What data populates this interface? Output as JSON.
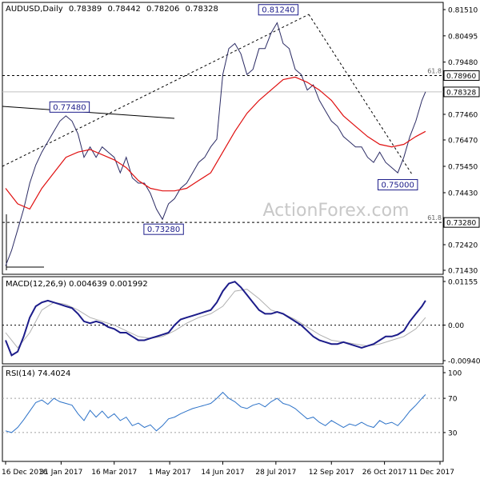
{
  "chart_data": {
    "type": "line",
    "title": "AUDUSD,Daily",
    "ohlc": {
      "open": "0.78389",
      "high": "0.78442",
      "low": "0.78206",
      "close": "0.78328"
    },
    "watermark": "ActionForex.com",
    "x_ticks": [
      "16 Dec 2016",
      "31 Jan 2017",
      "16 Mar 2017",
      "1 May 2017",
      "14 Jun 2017",
      "28 Jul 2017",
      "12 Sep 2017",
      "26 Oct 2017",
      "11 Dec 2017"
    ],
    "price_panel": {
      "ylim": [
        0.7143,
        0.8151
      ],
      "y_ticks": [
        "0.81510",
        "0.80495",
        "0.79480",
        "0.78328",
        "0.77460",
        "0.76470",
        "0.75450",
        "0.74430",
        "0.73280",
        "0.72420",
        "0.71430"
      ],
      "y_tick_values": [
        0.8151,
        0.80495,
        0.7948,
        0.78328,
        0.7746,
        0.7647,
        0.7545,
        0.7443,
        0.7328,
        0.7242,
        0.7143
      ],
      "current_price": "0.78328",
      "highlighted_levels": [
        {
          "label": "0.78960",
          "value": 0.7896,
          "fib": "61.8"
        },
        {
          "label": "0.73280",
          "value": 0.7328,
          "fib": "61.8"
        }
      ],
      "annotations": [
        {
          "label": "0.81240",
          "value": 0.8124,
          "day": 226
        },
        {
          "label": "0.77480",
          "value": 0.7748,
          "day": 53
        },
        {
          "label": "0.73280",
          "value": 0.7328,
          "day": 131
        },
        {
          "label": "0.75000",
          "value": 0.75,
          "day": 325
        }
      ],
      "close_series": [
        [
          0,
          0.716
        ],
        [
          5,
          0.722
        ],
        [
          10,
          0.73
        ],
        [
          15,
          0.738
        ],
        [
          20,
          0.748
        ],
        [
          25,
          0.755
        ],
        [
          30,
          0.76
        ],
        [
          35,
          0.764
        ],
        [
          40,
          0.768
        ],
        [
          45,
          0.772
        ],
        [
          50,
          0.774
        ],
        [
          55,
          0.772
        ],
        [
          60,
          0.767
        ],
        [
          65,
          0.758
        ],
        [
          70,
          0.762
        ],
        [
          75,
          0.758
        ],
        [
          80,
          0.762
        ],
        [
          85,
          0.76
        ],
        [
          90,
          0.758
        ],
        [
          95,
          0.752
        ],
        [
          100,
          0.758
        ],
        [
          105,
          0.75
        ],
        [
          110,
          0.748
        ],
        [
          115,
          0.748
        ],
        [
          120,
          0.744
        ],
        [
          125,
          0.738
        ],
        [
          130,
          0.734
        ],
        [
          135,
          0.74
        ],
        [
          140,
          0.742
        ],
        [
          145,
          0.746
        ],
        [
          150,
          0.748
        ],
        [
          155,
          0.752
        ],
        [
          160,
          0.756
        ],
        [
          165,
          0.758
        ],
        [
          170,
          0.762
        ],
        [
          175,
          0.765
        ],
        [
          180,
          0.79
        ],
        [
          185,
          0.8
        ],
        [
          190,
          0.802
        ],
        [
          195,
          0.798
        ],
        [
          200,
          0.79
        ],
        [
          205,
          0.792
        ],
        [
          210,
          0.8
        ],
        [
          215,
          0.8
        ],
        [
          220,
          0.806
        ],
        [
          225,
          0.81
        ],
        [
          230,
          0.802
        ],
        [
          235,
          0.8
        ],
        [
          240,
          0.792
        ],
        [
          245,
          0.79
        ],
        [
          250,
          0.784
        ],
        [
          255,
          0.786
        ],
        [
          260,
          0.78
        ],
        [
          265,
          0.776
        ],
        [
          270,
          0.772
        ],
        [
          275,
          0.77
        ],
        [
          280,
          0.766
        ],
        [
          285,
          0.764
        ],
        [
          290,
          0.762
        ],
        [
          295,
          0.762
        ],
        [
          300,
          0.758
        ],
        [
          305,
          0.756
        ],
        [
          310,
          0.76
        ],
        [
          315,
          0.756
        ],
        [
          320,
          0.754
        ],
        [
          325,
          0.752
        ],
        [
          330,
          0.758
        ],
        [
          335,
          0.766
        ],
        [
          340,
          0.772
        ],
        [
          345,
          0.78
        ],
        [
          348,
          0.7833
        ]
      ],
      "ma_series": [
        [
          0,
          0.746
        ],
        [
          10,
          0.74
        ],
        [
          20,
          0.738
        ],
        [
          30,
          0.746
        ],
        [
          40,
          0.752
        ],
        [
          50,
          0.758
        ],
        [
          60,
          0.76
        ],
        [
          70,
          0.761
        ],
        [
          80,
          0.759
        ],
        [
          90,
          0.757
        ],
        [
          100,
          0.754
        ],
        [
          110,
          0.749
        ],
        [
          120,
          0.746
        ],
        [
          130,
          0.745
        ],
        [
          140,
          0.745
        ],
        [
          150,
          0.746
        ],
        [
          160,
          0.749
        ],
        [
          170,
          0.752
        ],
        [
          180,
          0.76
        ],
        [
          190,
          0.768
        ],
        [
          200,
          0.775
        ],
        [
          210,
          0.78
        ],
        [
          220,
          0.784
        ],
        [
          230,
          0.788
        ],
        [
          240,
          0.789
        ],
        [
          250,
          0.787
        ],
        [
          260,
          0.784
        ],
        [
          270,
          0.78
        ],
        [
          280,
          0.774
        ],
        [
          290,
          0.77
        ],
        [
          300,
          0.766
        ],
        [
          310,
          0.763
        ],
        [
          320,
          0.762
        ],
        [
          330,
          0.763
        ],
        [
          340,
          0.766
        ],
        [
          348,
          0.768
        ]
      ]
    },
    "macd_panel": {
      "label": "MACD(12,26,9) 0.004639 0.001992",
      "ylim": [
        -0.0094,
        0.01155
      ],
      "y_ticks": [
        "0.01155",
        "0.00",
        "-0.009408"
      ],
      "y_tick_values": [
        0.01155,
        0,
        -0.0094
      ],
      "macd_series": [
        [
          0,
          -0.004
        ],
        [
          5,
          -0.008
        ],
        [
          10,
          -0.007
        ],
        [
          15,
          -0.003
        ],
        [
          20,
          0.002
        ],
        [
          25,
          0.005
        ],
        [
          30,
          0.006
        ],
        [
          35,
          0.0065
        ],
        [
          40,
          0.006
        ],
        [
          45,
          0.0055
        ],
        [
          50,
          0.005
        ],
        [
          55,
          0.0045
        ],
        [
          60,
          0.003
        ],
        [
          65,
          0.001
        ],
        [
          70,
          0.0005
        ],
        [
          75,
          0.001
        ],
        [
          80,
          0.0005
        ],
        [
          85,
          -0.0005
        ],
        [
          90,
          -0.001
        ],
        [
          95,
          -0.002
        ],
        [
          100,
          -0.002
        ],
        [
          105,
          -0.003
        ],
        [
          110,
          -0.004
        ],
        [
          115,
          -0.004
        ],
        [
          120,
          -0.0035
        ],
        [
          125,
          -0.003
        ],
        [
          130,
          -0.0025
        ],
        [
          135,
          -0.002
        ],
        [
          140,
          0
        ],
        [
          145,
          0.0015
        ],
        [
          150,
          0.002
        ],
        [
          155,
          0.0025
        ],
        [
          160,
          0.003
        ],
        [
          165,
          0.0035
        ],
        [
          170,
          0.004
        ],
        [
          175,
          0.006
        ],
        [
          180,
          0.009
        ],
        [
          185,
          0.011
        ],
        [
          190,
          0.0115
        ],
        [
          195,
          0.01
        ],
        [
          200,
          0.008
        ],
        [
          205,
          0.006
        ],
        [
          210,
          0.004
        ],
        [
          215,
          0.003
        ],
        [
          220,
          0.003
        ],
        [
          225,
          0.0035
        ],
        [
          230,
          0.003
        ],
        [
          235,
          0.002
        ],
        [
          240,
          0.001
        ],
        [
          245,
          0
        ],
        [
          250,
          -0.0015
        ],
        [
          255,
          -0.003
        ],
        [
          260,
          -0.004
        ],
        [
          265,
          -0.0045
        ],
        [
          270,
          -0.005
        ],
        [
          275,
          -0.005
        ],
        [
          280,
          -0.0045
        ],
        [
          285,
          -0.005
        ],
        [
          290,
          -0.0055
        ],
        [
          295,
          -0.006
        ],
        [
          300,
          -0.0055
        ],
        [
          305,
          -0.005
        ],
        [
          310,
          -0.004
        ],
        [
          315,
          -0.003
        ],
        [
          320,
          -0.003
        ],
        [
          325,
          -0.0025
        ],
        [
          330,
          -0.0015
        ],
        [
          335,
          0.001
        ],
        [
          340,
          0.003
        ],
        [
          345,
          0.005
        ],
        [
          348,
          0.0065
        ]
      ],
      "signal_series": [
        [
          0,
          -0.002
        ],
        [
          10,
          -0.006
        ],
        [
          20,
          -0.002
        ],
        [
          30,
          0.004
        ],
        [
          40,
          0.006
        ],
        [
          50,
          0.0055
        ],
        [
          60,
          0.004
        ],
        [
          70,
          0.002
        ],
        [
          80,
          0.001
        ],
        [
          90,
          0
        ],
        [
          100,
          -0.0015
        ],
        [
          110,
          -0.003
        ],
        [
          120,
          -0.0035
        ],
        [
          130,
          -0.003
        ],
        [
          140,
          -0.0015
        ],
        [
          150,
          0.0005
        ],
        [
          160,
          0.002
        ],
        [
          170,
          0.003
        ],
        [
          180,
          0.005
        ],
        [
          190,
          0.009
        ],
        [
          200,
          0.0095
        ],
        [
          210,
          0.007
        ],
        [
          220,
          0.004
        ],
        [
          230,
          0.003
        ],
        [
          240,
          0.0015
        ],
        [
          250,
          -0.0005
        ],
        [
          260,
          -0.0025
        ],
        [
          270,
          -0.004
        ],
        [
          280,
          -0.0045
        ],
        [
          290,
          -0.005
        ],
        [
          300,
          -0.0055
        ],
        [
          310,
          -0.005
        ],
        [
          320,
          -0.004
        ],
        [
          330,
          -0.003
        ],
        [
          340,
          -0.001
        ],
        [
          348,
          0.002
        ]
      ]
    },
    "rsi_panel": {
      "label": "RSI(14) 74.4024",
      "ylim": [
        0,
        100
      ],
      "y_ticks": [
        "100",
        "70",
        "30"
      ],
      "y_tick_values": [
        100,
        70,
        30
      ],
      "rsi_series": [
        [
          0,
          32
        ],
        [
          5,
          30
        ],
        [
          10,
          36
        ],
        [
          15,
          45
        ],
        [
          20,
          55
        ],
        [
          25,
          65
        ],
        [
          30,
          68
        ],
        [
          35,
          63
        ],
        [
          40,
          70
        ],
        [
          45,
          66
        ],
        [
          50,
          64
        ],
        [
          55,
          62
        ],
        [
          60,
          52
        ],
        [
          65,
          44
        ],
        [
          70,
          56
        ],
        [
          75,
          48
        ],
        [
          80,
          55
        ],
        [
          85,
          47
        ],
        [
          90,
          52
        ],
        [
          95,
          44
        ],
        [
          100,
          48
        ],
        [
          105,
          38
        ],
        [
          110,
          41
        ],
        [
          115,
          36
        ],
        [
          120,
          39
        ],
        [
          125,
          32
        ],
        [
          130,
          38
        ],
        [
          135,
          46
        ],
        [
          140,
          48
        ],
        [
          145,
          52
        ],
        [
          150,
          55
        ],
        [
          155,
          58
        ],
        [
          160,
          60
        ],
        [
          165,
          62
        ],
        [
          170,
          64
        ],
        [
          175,
          70
        ],
        [
          180,
          77
        ],
        [
          185,
          70
        ],
        [
          190,
          66
        ],
        [
          195,
          60
        ],
        [
          200,
          58
        ],
        [
          205,
          62
        ],
        [
          210,
          64
        ],
        [
          215,
          60
        ],
        [
          220,
          66
        ],
        [
          225,
          70
        ],
        [
          230,
          64
        ],
        [
          235,
          62
        ],
        [
          240,
          58
        ],
        [
          245,
          52
        ],
        [
          250,
          46
        ],
        [
          255,
          48
        ],
        [
          260,
          42
        ],
        [
          265,
          38
        ],
        [
          270,
          44
        ],
        [
          275,
          40
        ],
        [
          280,
          36
        ],
        [
          285,
          40
        ],
        [
          290,
          38
        ],
        [
          295,
          42
        ],
        [
          300,
          38
        ],
        [
          305,
          36
        ],
        [
          310,
          44
        ],
        [
          315,
          40
        ],
        [
          320,
          42
        ],
        [
          325,
          38
        ],
        [
          330,
          46
        ],
        [
          335,
          55
        ],
        [
          340,
          62
        ],
        [
          345,
          70
        ],
        [
          348,
          74.4
        ]
      ]
    }
  }
}
